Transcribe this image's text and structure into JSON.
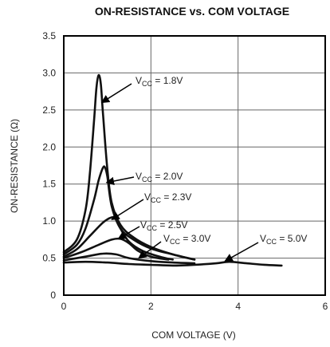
{
  "chart_data": {
    "type": "line",
    "title": "ON-RESISTANCE vs. COM VOLTAGE",
    "xlabel": "COM VOLTAGE (V)",
    "ylabel": "ON-RESISTANCE (Ω)",
    "xlim": [
      0,
      6
    ],
    "ylim": [
      0,
      3.5
    ],
    "xticks": [
      0,
      2,
      4,
      6
    ],
    "yticks": [
      0,
      0.5,
      1.0,
      1.5,
      2.0,
      2.5,
      3.0,
      3.5
    ],
    "ytick_labels": [
      "0",
      "0.5",
      "1.0",
      "1.5",
      "2.0",
      "2.5",
      "3.0",
      "3.5"
    ],
    "grid": true,
    "series": [
      {
        "label": {
          "prefix": "V",
          "sub": "CC",
          "suffix": " = 1.8V"
        },
        "x": [
          0,
          0.3,
          0.5,
          0.6,
          0.7,
          0.75,
          0.8,
          0.85,
          0.9,
          1.0,
          1.1,
          1.3,
          1.6,
          2.0,
          2.5,
          3.0
        ],
        "y": [
          0.58,
          0.75,
          1.15,
          1.65,
          2.4,
          2.8,
          2.97,
          2.85,
          2.45,
          1.7,
          1.25,
          0.95,
          0.78,
          0.65,
          0.55,
          0.48
        ]
      },
      {
        "label": {
          "prefix": "V",
          "sub": "CC",
          "suffix": " = 2.0V"
        },
        "x": [
          0,
          0.3,
          0.5,
          0.7,
          0.8,
          0.9,
          0.95,
          1.0,
          1.1,
          1.3,
          1.6,
          2.0,
          2.5,
          3.0
        ],
        "y": [
          0.55,
          0.68,
          0.9,
          1.3,
          1.55,
          1.72,
          1.72,
          1.6,
          1.2,
          0.9,
          0.75,
          0.63,
          0.55,
          0.48
        ]
      },
      {
        "label": {
          "prefix": "V",
          "sub": "CC",
          "suffix": " = 2.3V"
        },
        "x": [
          0,
          0.3,
          0.6,
          0.9,
          1.1,
          1.2,
          1.3,
          1.5,
          1.8,
          2.2,
          2.5
        ],
        "y": [
          0.52,
          0.62,
          0.8,
          0.98,
          1.05,
          1.03,
          0.9,
          0.72,
          0.6,
          0.52,
          0.48
        ]
      },
      {
        "label": {
          "prefix": "V",
          "sub": "CC",
          "suffix": " = 2.5V"
        },
        "x": [
          0,
          0.4,
          0.8,
          1.1,
          1.3,
          1.5,
          1.7,
          2.0,
          2.4
        ],
        "y": [
          0.5,
          0.58,
          0.68,
          0.75,
          0.76,
          0.7,
          0.6,
          0.52,
          0.48
        ]
      },
      {
        "label": {
          "prefix": "V",
          "sub": "CC",
          "suffix": " = 3.0V"
        },
        "x": [
          0,
          0.5,
          0.9,
          1.2,
          1.5,
          2.0,
          2.5,
          3.0
        ],
        "y": [
          0.47,
          0.52,
          0.56,
          0.55,
          0.5,
          0.46,
          0.44,
          0.43
        ]
      },
      {
        "label": {
          "prefix": "V",
          "sub": "CC",
          "suffix": " = 5.0V"
        },
        "x": [
          0,
          0.5,
          1.0,
          1.5,
          2.0,
          2.5,
          3.0,
          3.5,
          3.8,
          4.2,
          4.6,
          5.0
        ],
        "y": [
          0.44,
          0.45,
          0.44,
          0.42,
          0.41,
          0.4,
          0.41,
          0.43,
          0.45,
          0.43,
          0.41,
          0.4
        ]
      }
    ]
  }
}
